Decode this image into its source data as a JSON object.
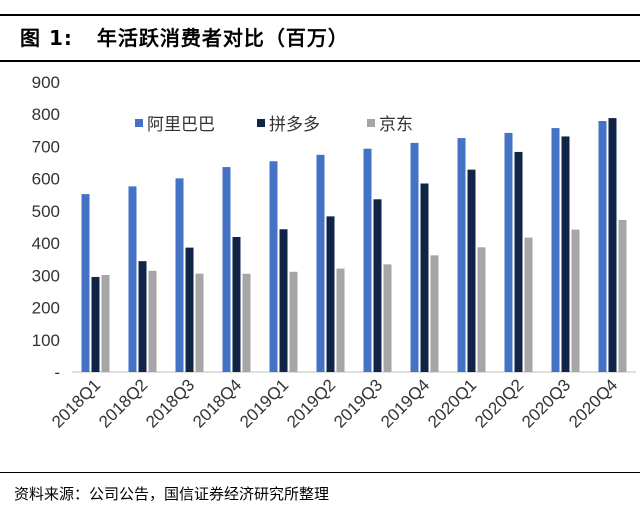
{
  "figure": {
    "label": "图 1:",
    "title": "年活跃消费者对比（百万）"
  },
  "source": "资料来源：公司公告，国信证券经济研究所整理",
  "colors": {
    "alibaba": "#4472C4",
    "pinduoduo": "#0F2446",
    "jd": "#A6A6A6"
  },
  "chart_data": {
    "type": "bar",
    "title": "年活跃消费者对比（百万）",
    "categories": [
      "2018Q1",
      "2018Q2",
      "2018Q3",
      "2018Q4",
      "2019Q1",
      "2019Q2",
      "2019Q3",
      "2019Q4",
      "2020Q1",
      "2020Q2",
      "2020Q3",
      "2020Q4"
    ],
    "series": [
      {
        "name": "阿里巴巴",
        "values": [
          552,
          576,
          601,
          636,
          654,
          674,
          693,
          711,
          726,
          742,
          757,
          779
        ]
      },
      {
        "name": "拼多多",
        "values": [
          295,
          344,
          386,
          419,
          443,
          483,
          536,
          585,
          628,
          683,
          731,
          788
        ]
      },
      {
        "name": "京东",
        "values": [
          301,
          314,
          305,
          305,
          311,
          321,
          334,
          362,
          387,
          417,
          442,
          472
        ]
      }
    ],
    "ylim": [
      0,
      900
    ],
    "yticks": [
      0,
      100,
      200,
      300,
      400,
      500,
      600,
      700,
      800,
      900
    ],
    "ytick_labels": [
      "-",
      "100",
      "200",
      "300",
      "400",
      "500",
      "600",
      "700",
      "800",
      "900"
    ],
    "xlabel": "",
    "ylabel": "",
    "legend_position": "top-left",
    "grid": false
  }
}
